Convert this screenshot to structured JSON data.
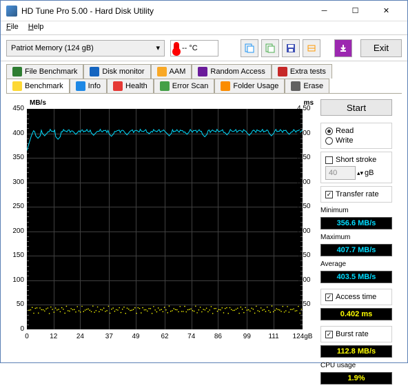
{
  "window": {
    "title": "HD Tune Pro 5.00 - Hard Disk Utility"
  },
  "menu": {
    "file": "File",
    "help": "Help"
  },
  "toolbar": {
    "drive": "Patriot Memory   (124 gB)",
    "temp": "-- °C",
    "exit": "Exit"
  },
  "tabs": {
    "row1": [
      {
        "label": "File Benchmark",
        "icon": "#2e7d32"
      },
      {
        "label": "Disk monitor",
        "icon": "#1565c0"
      },
      {
        "label": "AAM",
        "icon": "#f9a825"
      },
      {
        "label": "Random Access",
        "icon": "#6a1b9a"
      },
      {
        "label": "Extra tests",
        "icon": "#c62828"
      }
    ],
    "row2": [
      {
        "label": "Benchmark",
        "icon": "#fdd835",
        "active": true
      },
      {
        "label": "Info",
        "icon": "#1e88e5"
      },
      {
        "label": "Health",
        "icon": "#e53935"
      },
      {
        "label": "Error Scan",
        "icon": "#43a047"
      },
      {
        "label": "Folder Usage",
        "icon": "#fb8c00"
      },
      {
        "label": "Erase",
        "icon": "#616161"
      }
    ]
  },
  "chart": {
    "ylabel_left": "MB/s",
    "ylabel_right": "ms",
    "ylim_left": [
      0,
      450
    ],
    "ytick_left_step": 50,
    "ylim_right": [
      0,
      4.5
    ],
    "ytick_right_step": 0.5,
    "xlim": [
      0,
      124
    ],
    "xunit": "gB",
    "xticks": [
      0,
      12,
      24,
      37,
      49,
      62,
      74,
      86,
      99,
      111,
      124
    ],
    "bg_color": "#000000",
    "grid_color": "#404040",
    "transfer_color": "#00dcff",
    "access_color": "#ffff00",
    "transfer_baseline": 405,
    "transfer_start": 365,
    "access_baseline_ms": 0.4,
    "transfer_dips": [
      [
        5,
        390
      ],
      [
        8,
        395
      ],
      [
        14,
        388
      ],
      [
        22,
        398
      ],
      [
        30,
        396
      ],
      [
        38,
        394
      ],
      [
        45,
        397
      ],
      [
        55,
        399
      ],
      [
        64,
        395
      ],
      [
        72,
        398
      ],
      [
        80,
        393
      ],
      [
        90,
        397
      ],
      [
        100,
        396
      ],
      [
        110,
        395
      ],
      [
        118,
        398
      ]
    ]
  },
  "side": {
    "start": "Start",
    "read": "Read",
    "write": "Write",
    "read_selected": true,
    "short_stroke": "Short stroke",
    "short_stroke_checked": false,
    "stroke_val": "40",
    "stroke_unit": "gB",
    "transfer_rate": "Transfer rate",
    "transfer_checked": true,
    "min_label": "Minimum",
    "min_val": "356.6 MB/s",
    "max_label": "Maximum",
    "max_val": "407.7 MB/s",
    "avg_label": "Average",
    "avg_val": "403.5 MB/s",
    "access_label": "Access time",
    "access_checked": true,
    "access_val": "0.402 ms",
    "burst_label": "Burst rate",
    "burst_checked": true,
    "burst_val": "112.8 MB/s",
    "cpu_label": "CPU usage",
    "cpu_val": "1.9%"
  }
}
